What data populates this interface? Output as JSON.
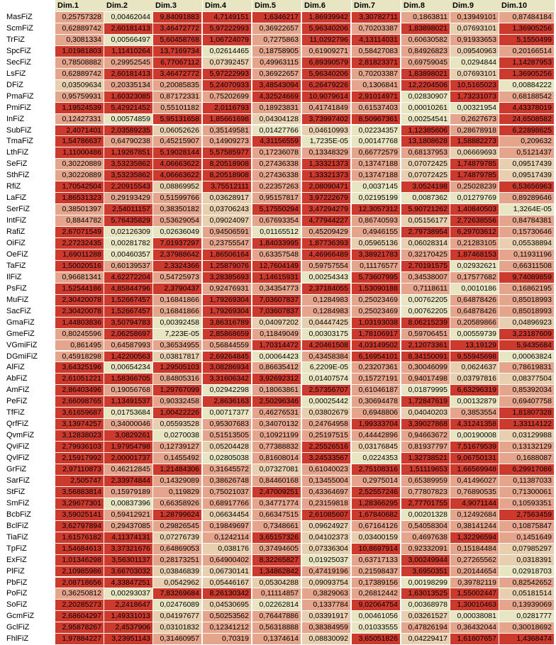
{
  "chart_data": {
    "type": "heatmap",
    "columns": [
      "Dim.1",
      "Dim.2",
      "Dim.3",
      "Dim.4",
      "Dim.5",
      "Dim.6",
      "Dim.7",
      "Dim.8",
      "Dim.9",
      "Dim.10"
    ],
    "colors": {
      "high": "#cc3a2d",
      "mid": "#e4a58c",
      "low": "#e8e6c2",
      "text": "#000000"
    },
    "rows": [
      {
        "label": "MasFiZ",
        "values": [
          "0,25757328",
          "0,00462044",
          "9,84091883",
          "4,7149151",
          "1,6346217",
          "1,86939942",
          "3,30782711",
          "0,1863811",
          "0,13949101",
          "0,87484184"
        ]
      },
      {
        "label": "ScmFiZ",
        "values": [
          "0,62889742",
          "2,60181413",
          "3,46472772",
          "5,97222993",
          "0,36922657",
          "5,96340206",
          "0,70203387",
          "1,83898021",
          "0,07693101",
          "1,36905256"
        ]
      },
      {
        "label": "TrFiZ",
        "values": [
          "0,3081334",
          "0,00566497",
          "5,60458768",
          "1,06724079",
          "0,7275863",
          "11,0292796",
          "4,13114031",
          "0,60630582",
          "0,91933653",
          "5,1550499"
        ]
      },
      {
        "label": "SpcFiZ",
        "values": [
          "1,01981803",
          "1,11410264",
          "13,7169734",
          "0,02614465",
          "0,18758905",
          "0,61909271",
          "0,58427083",
          "0,84926823",
          "0,09540963",
          "0,20166514"
        ]
      },
      {
        "label": "SecFiZ",
        "values": [
          "0,78508882",
          "0,29952545",
          "6,77067112",
          "0,07392457",
          "0,49963115",
          "6,89390579",
          "2,81823371",
          "0,69759045",
          "0,0294844",
          "1,14287953"
        ]
      },
      {
        "label": "LsFiZ",
        "values": [
          "0,62889742",
          "2,60181413",
          "3,46472772",
          "5,97222993",
          "0,36922657",
          "5,96340206",
          "0,70203387",
          "1,83898021",
          "0,07693101",
          "1,36905256"
        ]
      },
      {
        "label": "DFiZ",
        "values": [
          "0,03509634",
          "0,20335134",
          "0,20085835",
          "5,24070933",
          "3,48543094",
          "6,26479226",
          "0,1306841",
          "12,2204506",
          "10,5165023",
          "0,00884222"
        ]
      },
      {
        "label": "PmaFiZ",
        "values": [
          "0,95759931",
          "1,60323085",
          "0,87172331",
          "0,75202699",
          "4,32524669",
          "10,9079614",
          "2,91014971",
          "0,02830907",
          "1,73231073",
          "0,68188542"
        ]
      },
      {
        "label": "PmiFiZ",
        "values": [
          "1,19524539",
          "5,42921452",
          "0,55101182",
          "2,0116793",
          "0,18923831",
          "0,41741849",
          "0,61537403",
          "0,00010261",
          "0,00321954",
          "4,43378019"
        ]
      },
      {
        "label": "InFiZ",
        "values": [
          "0,12427331",
          "0,00574859",
          "5,95131658",
          "1,85661698",
          "0,04304128",
          "3,73997402",
          "8,50967361",
          "0,00254541",
          "0,2627673",
          "24,6508582"
        ]
      },
      {
        "label": "SubFiZ",
        "values": [
          "2,4071401",
          "2,03589235",
          "0,06052626",
          "0,35149581",
          "0,01427766",
          "0,04610993",
          "0,02234357",
          "1,12385606",
          "0,28678918",
          "6,22898625"
        ]
      },
      {
        "label": "TmaFiZ",
        "values": [
          "1,54786637",
          "0,64790238",
          "0,45215907",
          "0,14909273",
          "4,31156559",
          "1,7235E-05",
          "0,00147768",
          "13,1808628",
          "1,58882273",
          "0,209632"
        ]
      },
      {
        "label": "LthFiZ",
        "values": [
          "1,11000486",
          "1,19267851",
          "5,19028144",
          "5,57585977",
          "0,17236078",
          "0,13348329",
          "0,66772579",
          "0,68137953",
          "0,06669693",
          "0,5121437"
        ]
      },
      {
        "label": "SeFiZ",
        "values": [
          "0,30220889",
          "3,53235862",
          "4,06663622",
          "8,20518908",
          "0,27436338",
          "1,33321373",
          "0,13747188",
          "0,07072425",
          "1,74879785",
          "0,09517439"
        ]
      },
      {
        "label": "SthFiZ",
        "values": [
          "0,30220889",
          "3,53235862",
          "4,06663622",
          "8,20518908",
          "0,27436338",
          "1,33321373",
          "0,13747188",
          "0,07072425",
          "1,74879785",
          "0,09517439"
        ]
      },
      {
        "label": "RfiZ",
        "values": [
          "1,70542504",
          "2,20915543",
          "0,08869952",
          "3,75512111",
          "0,22357263",
          "2,08090471",
          "0,0037145",
          "3,0524198",
          "0,25028239",
          "6,53656963"
        ]
      },
      {
        "label": "LaFiZ",
        "values": [
          "1,86531323",
          "0,29193429",
          "0,51599766",
          "0,03628917",
          "0,95157817",
          "3,97222679",
          "0,02195199",
          "0,0087362",
          "0,01279769",
          "0,89289646"
        ]
      },
      {
        "label": "SerFiZ",
        "values": [
          "0,38501397",
          "2,54011157",
          "0,38350182",
          "0,03706243",
          "5,17550294",
          "3,47294279",
          "12,3057312",
          "5,90721262",
          "1,40840503",
          "1,3264E-05"
        ]
      },
      {
        "label": "IntFiZ",
        "values": [
          "0,8844782",
          "5,76435829",
          "0,53629054",
          "0,09024097",
          "0,67693354",
          "4,77944227",
          "0,86740593",
          "0,05156177",
          "2,72638556",
          "0,84784381"
        ]
      },
      {
        "label": "RafiZ",
        "values": [
          "2,67071549",
          "0,02126309",
          "0,02636049",
          "0,94506591",
          "0,01165512",
          "0,45209429",
          "0,4946155",
          "2,79738954",
          "6,29703612",
          "0,15730646"
        ]
      },
      {
        "label": "OiFiZ",
        "values": [
          "2,27232435",
          "0,00281782",
          "7,01937297",
          "0,23755547",
          "1,84033995",
          "1,87736393",
          "0,05965136",
          "0,06028314",
          "0,21283105",
          "0,05538894"
        ]
      },
      {
        "label": "OeFiZ",
        "values": [
          "1,69011288",
          "0,00460357",
          "2,37988642",
          "1,86506164",
          "0,63357548",
          "4,46966489",
          "3,38921783",
          "0,32170425",
          "1,87468153",
          "0,11931196"
        ]
      },
      {
        "label": "TaFiZ",
        "values": [
          "1,50020516",
          "0,60139537",
          "2,3324366",
          "1,25879076",
          "12,7604149",
          "0,59757554",
          "0,11176577",
          "2,70191575",
          "0,02932621",
          "0,66311508"
        ]
      },
      {
        "label": "IlFiZ",
        "values": [
          "0,96681341",
          "4,62272204",
          "0,54725973",
          "3,28385693",
          "1,14615931",
          "0,00254343",
          "5,73607995",
          "0,34538007",
          "0,17577682",
          "9,74089859"
        ]
      },
      {
        "label": "PsFiZ",
        "values": [
          "1,52544186",
          "4,85844796",
          "2,3790437",
          "0,92476931",
          "0,34354773",
          "2,37184055",
          "1,53090188",
          "0,7118611",
          "0,0010186",
          "0,16862195"
        ]
      },
      {
        "label": "MuFiZ",
        "values": [
          "2,30420078",
          "1,52667457",
          "0,16841866",
          "1,79269304",
          "7,03607837",
          "0,1284983",
          "0,25023469",
          "0,00762205",
          "0,64878426",
          "0,85018993"
        ]
      },
      {
        "label": "SacFiZ",
        "values": [
          "2,30420078",
          "1,52667457",
          "0,16841866",
          "1,79269304",
          "7,03607837",
          "0,1284983",
          "0,25023469",
          "0,00762205",
          "0,64878426",
          "0,85018993"
        ]
      },
      {
        "label": "GmaFiZ",
        "values": [
          "1,44803836",
          "3,50794783",
          "0,00392458",
          "3,86316789",
          "0,04097202",
          "0,04447425",
          "1,03193038",
          "8,06215239",
          "0,20589866",
          "0,04896923"
        ]
      },
      {
        "label": "GmeFiZ",
        "values": [
          "0,80245596",
          "2,06258697",
          "7,223E-05",
          "2,85868659",
          "0,11849049",
          "0,00303175",
          "1,78106917",
          "0,59706451",
          "0,00559739",
          "3,23187609"
        ]
      },
      {
        "label": "VGmiFiZ",
        "values": [
          "0,861495",
          "0,64587993",
          "0,36534955",
          "0,56844559",
          "1,70314472",
          "4,20461508",
          "4,03149502",
          "2,12073361",
          "13,19129",
          "5,9435684"
        ]
      },
      {
        "label": "DGmiFiZ",
        "values": [
          "0,45918298",
          "1,42200563",
          "0,03817817",
          "2,69264845",
          "0,00064423",
          "0,43458384",
          "6,16954101",
          "8,34150091",
          "9,55945698",
          "0,00063824"
        ]
      },
      {
        "label": "AlFiZ",
        "values": [
          "3,64325196",
          "0,00654234",
          "1,29505103",
          "3,08286934",
          "0,86635412",
          "6,2209E-05",
          "0,23207361",
          "0,30046099",
          "0,0624637",
          "0,78619831"
        ]
      },
      {
        "label": "AbFiZ",
        "values": [
          "2,61051221",
          "1,58366705",
          "0,84805316",
          "3,31606342",
          "3,92692312",
          "0,01407574",
          "0,15727191",
          "0,94017498",
          "0,03797816",
          "0,08377504"
        ]
      },
      {
        "label": "AmFiZ",
        "values": [
          "2,86403496",
          "0,19056768",
          "1,29767099",
          "0,02942298",
          "0,18063861",
          "2,57356707",
          "0,61046187",
          "0,01879995",
          "6,63296319",
          "0,85392034"
        ]
      },
      {
        "label": "PeFiZ",
        "values": [
          "2,66098765",
          "1,13491537",
          "0,90332458",
          "2,8636163",
          "2,50296346",
          "0,00025442",
          "0,30694478",
          "1,72847619",
          "0,00132879",
          "0,69407758"
        ]
      },
      {
        "label": "TfFiZ",
        "values": [
          "3,61659687",
          "0,01753684",
          "1,00422226",
          "0,00717377",
          "0,46276531",
          "0,03802679",
          "0,6948806",
          "0,04040203",
          "0,3853554",
          "1,81807328"
        ]
      },
      {
        "label": "QrfFiZ",
        "values": [
          "3,13974257",
          "0,34000046",
          "0,05593528",
          "0,95307683",
          "0,34070132",
          "0,24764958",
          "1,99333704",
          "3,39027868",
          "4,31241358",
          "1,33114122"
        ]
      },
      {
        "label": "QvmFiZ",
        "values": [
          "3,12838023",
          "3,0829261",
          "0,0270038",
          "0,51513505",
          "0,10921199",
          "0,25197515",
          "0,44442896",
          "0,94663672",
          "0,00190008",
          "0,03129988"
        ]
      },
      {
        "label": "QviFiZ",
        "values": [
          "2,79936103",
          "1,97954798",
          "0,12739127",
          "0,05204428",
          "0,77388832",
          "2,25526516",
          "0,03176845",
          "0,81937797",
          "7,51679539",
          "0,13132129"
        ]
      },
      {
        "label": "QvlFiZ",
        "values": [
          "2,15917992",
          "2,00001737",
          "0,1455492",
          "0,02805038",
          "0,81608014",
          "3,24533567",
          "0,0224353",
          "1,32738521",
          "9,06750131",
          "0,1688087"
        ]
      },
      {
        "label": "GrFiZ",
        "values": [
          "2,97110873",
          "0,46212845",
          "1,21484306",
          "0,31645572",
          "0,07327081",
          "0,61040023",
          "2,75108316",
          "1,51119653",
          "1,66569948",
          "6,29917086"
        ]
      },
      {
        "label": "SarFiZ",
        "values": [
          "2,505747",
          "2,33974844",
          "0,14329089",
          "0,38626748",
          "0,84460168",
          "0,13455004",
          "0,2975014",
          "0,65389959",
          "0,41496027",
          "0,11387033"
        ]
      },
      {
        "label": "StFiZ",
        "values": [
          "3,56883814",
          "0,15979189",
          "0,119829",
          "0,75021037",
          "2,47009251",
          "0,43364697",
          "2,52557246",
          "0,77807823",
          "0,76890535",
          "0,71300061"
        ]
      },
      {
        "label": "SmFiZ",
        "values": [
          "3,29677301",
          "0,00837396",
          "0,66358926",
          "0,68917766",
          "0,34771774",
          "0,23159818",
          "1,28366295",
          "2,77701755",
          "4,9071144",
          "0,10593351"
        ]
      },
      {
        "label": "BcbFiZ",
        "values": [
          "3,59025141",
          "0,59412921",
          "1,28799624",
          "0,06634454",
          "0,66347515",
          "2,61085607",
          "1,67840682",
          "0,00201328",
          "0,12492684",
          "2,7563459"
        ]
      },
      {
        "label": "BclFiZ",
        "values": [
          "3,62797894",
          "0,29437085",
          "0,29826545",
          "0,19849697",
          "0,7348661",
          "0,09624927",
          "0,67164126",
          "0,54058304",
          "0,38141244",
          "0,10875847"
        ]
      },
      {
        "label": "TiaFiZ",
        "values": [
          "1,61576182",
          "4,11374131",
          "0,07276739",
          "0,1242114",
          "3,65157326",
          "0,04102373",
          "0,03400159",
          "0,4697638",
          "1,32296594",
          "0,1451649"
        ]
      },
      {
        "label": "TpFiZ",
        "values": [
          "1,54684613",
          "3,37321676",
          "0,64869053",
          "0,038176",
          "0,37494605",
          "0,07336304",
          "10,8697914",
          "0,92332091",
          "0,15184484",
          "0,07985297"
        ]
      },
      {
        "label": "ExFiZ",
        "values": [
          "1,01346298",
          "3,56301137",
          "0,28173251",
          "0,64900402",
          "8,32265827",
          "0,01925037",
          "0,63717133",
          "3,00249944",
          "0,27265562",
          "0,0318391"
        ]
      },
      {
        "label": "PlFiZ",
        "values": [
          "2,10985986",
          "3,66703032",
          "0,03846839",
          "0,06730141",
          "1,34862842",
          "0,47419196",
          "0,21598437",
          "3,6950351",
          "0,20144654",
          "0,02918703"
        ]
      },
      {
        "label": "PbFiZ",
        "values": [
          "2,08718656",
          "4,33847251",
          "0,0542962",
          "0,05446167",
          "0,05304288",
          "0,09093754",
          "0,17389156",
          "0,00198299",
          "0,39782119",
          "0,82542652"
        ]
      },
      {
        "label": "PoFiZ",
        "values": [
          "0,36250812",
          "0,00293037",
          "7,83269684",
          "8,26130342",
          "0,11114857",
          "0,3829063",
          "0,26812442",
          "1,63013525",
          "1,55002447",
          "0,05181514"
        ]
      },
      {
        "label": "SoFiZ",
        "values": [
          "2,20285273",
          "2,2418647",
          "0,02476089",
          "0,04530695",
          "0,02262814",
          "0,1337784",
          "9,02064754",
          "0,00368978",
          "1,30010463",
          "0,13939069"
        ]
      },
      {
        "label": "GcmFiZ",
        "values": [
          "2,68604297",
          "1,49331013",
          "0,04197677",
          "0,50253562",
          "0,76447886",
          "0,03391917",
          "0,00461056",
          "0,03261527",
          "0,00038081",
          "0,0281777"
        ]
      },
      {
        "label": "GclFiZ",
        "values": [
          "2,95878267",
          "2,4537906",
          "0,03101832",
          "0,12341212",
          "0,56318888",
          "0,38384959",
          "0,01033555",
          "0,47826194",
          "0,36432044",
          "0,30018692"
        ]
      },
      {
        "label": "FhlFiZ",
        "values": [
          "1,97884227",
          "3,23951143",
          "0,31460957",
          "0,70319",
          "0,1374614",
          "0,08830092",
          "3,65051826",
          "0,04229417",
          "1,61607657",
          "1,4368474"
        ]
      }
    ]
  }
}
